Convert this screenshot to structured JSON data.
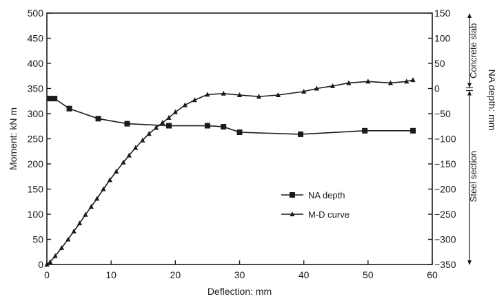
{
  "chart_data": {
    "type": "line",
    "xlabel": "Deflection: mm",
    "ylabel_left": "Moment: kN m",
    "ylabel_right": "NA depth: mm",
    "xlim": [
      0,
      60
    ],
    "ylim_left": [
      0,
      500
    ],
    "ylim_right": [
      -350,
      150
    ],
    "x_ticks": [
      0,
      10,
      20,
      30,
      40,
      50,
      60
    ],
    "y_left_ticks": [
      0,
      50,
      100,
      150,
      200,
      250,
      300,
      350,
      400,
      450,
      500
    ],
    "y_right_ticks": [
      150,
      100,
      50,
      0,
      -50,
      -100,
      -150,
      -200,
      -250,
      -300,
      -350
    ],
    "grid": false,
    "legend_position": "lower-right",
    "side_annotations": [
      {
        "label": "Concrete slab",
        "from": 150,
        "to": 0
      },
      {
        "label": "Steel section",
        "from": 0,
        "to": -350
      }
    ],
    "series": [
      {
        "name": "NA depth",
        "marker": "square",
        "axis": "right",
        "points": [
          [
            0.5,
            -20
          ],
          [
            1.2,
            -20
          ],
          [
            3.5,
            -40
          ],
          [
            8,
            -60
          ],
          [
            12.5,
            -70
          ],
          [
            19,
            -74
          ],
          [
            25,
            -74
          ],
          [
            27.5,
            -76
          ],
          [
            30,
            -87
          ],
          [
            39.5,
            -91
          ],
          [
            49.5,
            -84
          ],
          [
            57,
            -84
          ]
        ]
      },
      {
        "name": "M-D curve",
        "marker": "triangle",
        "axis": "left",
        "points": [
          [
            0,
            0
          ],
          [
            0.5,
            5
          ],
          [
            1.3,
            17
          ],
          [
            2.3,
            33
          ],
          [
            3.3,
            50
          ],
          [
            4.2,
            66
          ],
          [
            5.1,
            82
          ],
          [
            6.0,
            99
          ],
          [
            6.9,
            115
          ],
          [
            7.8,
            131
          ],
          [
            8.8,
            150
          ],
          [
            9.8,
            168
          ],
          [
            10.8,
            185
          ],
          [
            11.9,
            203
          ],
          [
            12.8,
            217
          ],
          [
            13.8,
            232
          ],
          [
            14.9,
            247
          ],
          [
            15.9,
            260
          ],
          [
            17,
            272
          ],
          [
            18,
            282
          ],
          [
            19,
            292
          ],
          [
            20,
            303
          ],
          [
            21.5,
            317
          ],
          [
            23,
            327
          ],
          [
            25,
            338
          ],
          [
            27.5,
            340
          ],
          [
            30,
            337
          ],
          [
            33,
            334
          ],
          [
            36,
            337
          ],
          [
            40,
            344
          ],
          [
            42,
            350
          ],
          [
            44.5,
            355
          ],
          [
            47,
            361
          ],
          [
            50,
            364
          ],
          [
            53.5,
            361
          ],
          [
            56,
            364
          ],
          [
            57,
            367
          ]
        ]
      }
    ]
  }
}
